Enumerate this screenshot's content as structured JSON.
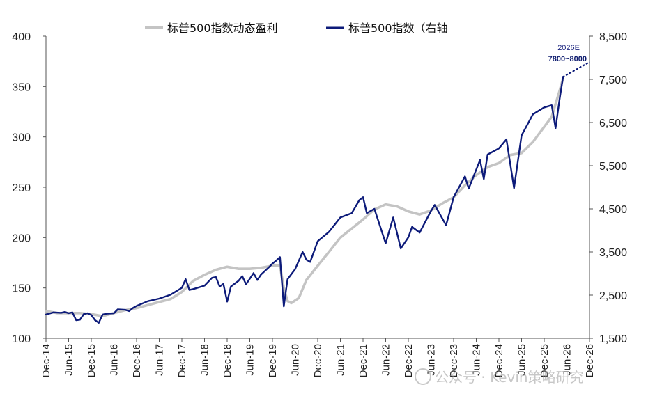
{
  "chart_data": {
    "type": "line",
    "legend": {
      "placement": "top-center",
      "items": [
        {
          "label": "标普500指数动态盈利",
          "color": "#c4c4c4"
        },
        {
          "label": "标普500指数（右轴",
          "color": "#0d1b7a"
        }
      ]
    },
    "y_left": {
      "ylim": [
        100,
        400
      ],
      "ticks": [
        "100",
        "150",
        "200",
        "250",
        "300",
        "350",
        "400"
      ]
    },
    "y_right": {
      "ylim": [
        1500,
        8500
      ],
      "ticks": [
        "1,500",
        "2,500",
        "3,500",
        "4,500",
        "5,500",
        "6,500",
        "7,500",
        "8,500"
      ]
    },
    "x_ticks": [
      "Dec-14",
      "Jun-15",
      "Dec-15",
      "Jun-16",
      "Dec-16",
      "Jun-17",
      "Dec-17",
      "Jun-18",
      "Dec-18",
      "Jun-19",
      "Dec-19",
      "Jun-20",
      "Dec-20",
      "Jun-21",
      "Dec-21",
      "Jun-22",
      "Dec-22",
      "Jun-23",
      "Dec-23",
      "Jun-24",
      "Dec-24",
      "Jun-25",
      "Dec-25",
      "Jun-26",
      "Dec-26"
    ],
    "series": [
      {
        "name": "标普500指数动态盈利",
        "axis": "left",
        "color": "#c4c4c4",
        "points": [
          [
            "Dec-14",
            127
          ],
          [
            "Mar-15",
            125
          ],
          [
            "Jun-15",
            125
          ],
          [
            "Sep-15",
            125
          ],
          [
            "Dec-15",
            124
          ],
          [
            "Mar-16",
            122
          ],
          [
            "Jun-16",
            125
          ],
          [
            "Sep-16",
            128
          ],
          [
            "Dec-16",
            130
          ],
          [
            "Mar-17",
            133
          ],
          [
            "Jun-17",
            136
          ],
          [
            "Sep-17",
            139
          ],
          [
            "Dec-17",
            146
          ],
          [
            "Mar-18",
            157
          ],
          [
            "Jun-18",
            163
          ],
          [
            "Sep-18",
            168
          ],
          [
            "Dec-18",
            171
          ],
          [
            "Mar-19",
            169
          ],
          [
            "Jun-19",
            169
          ],
          [
            "Sep-19",
            170
          ],
          [
            "Dec-19",
            172
          ],
          [
            "Feb-20",
            172
          ],
          [
            "Mar-20",
            150
          ],
          [
            "Apr-20",
            137
          ],
          [
            "May-20",
            135
          ],
          [
            "Jul-20",
            140
          ],
          [
            "Sep-20",
            158
          ],
          [
            "Dec-20",
            172
          ],
          [
            "Mar-21",
            186
          ],
          [
            "Jun-21",
            200
          ],
          [
            "Sep-21",
            209
          ],
          [
            "Dec-21",
            218
          ],
          [
            "Mar-22",
            228
          ],
          [
            "Jun-22",
            233
          ],
          [
            "Sep-22",
            231
          ],
          [
            "Dec-22",
            226
          ],
          [
            "Mar-23",
            223
          ],
          [
            "Jun-23",
            227
          ],
          [
            "Sep-23",
            234
          ],
          [
            "Dec-23",
            240
          ],
          [
            "Mar-24",
            252
          ],
          [
            "Jun-24",
            262
          ],
          [
            "Sep-24",
            270
          ],
          [
            "Dec-24",
            274
          ],
          [
            "Mar-25",
            282
          ],
          [
            "Jun-25",
            284
          ],
          [
            "Sep-25",
            295
          ],
          [
            "Dec-25",
            310
          ],
          [
            "Feb-26",
            320
          ],
          [
            "Apr-26",
            345
          ],
          [
            "May-26",
            358
          ]
        ]
      },
      {
        "name": "标普500指数（右轴）",
        "axis": "right",
        "color": "#0d1b7a",
        "points": [
          [
            "Dec-14",
            2050
          ],
          [
            "Feb-15",
            2100
          ],
          [
            "Apr-15",
            2090
          ],
          [
            "May-15",
            2110
          ],
          [
            "Jun-15",
            2080
          ],
          [
            "Jul-15",
            2100
          ],
          [
            "Aug-15",
            1920
          ],
          [
            "Sep-15",
            1930
          ],
          [
            "Oct-15",
            2060
          ],
          [
            "Nov-15",
            2080
          ],
          [
            "Dec-15",
            2040
          ],
          [
            "Jan-16",
            1920
          ],
          [
            "Feb-16",
            1860
          ],
          [
            "Mar-16",
            2050
          ],
          [
            "Apr-16",
            2070
          ],
          [
            "Jun-16",
            2080
          ],
          [
            "Jul-16",
            2170
          ],
          [
            "Sep-16",
            2160
          ],
          [
            "Oct-16",
            2130
          ],
          [
            "Nov-16",
            2200
          ],
          [
            "Dec-16",
            2250
          ],
          [
            "Mar-17",
            2360
          ],
          [
            "Jun-17",
            2420
          ],
          [
            "Sep-17",
            2510
          ],
          [
            "Dec-17",
            2670
          ],
          [
            "Jan-18",
            2870
          ],
          [
            "Feb-18",
            2620
          ],
          [
            "Mar-18",
            2640
          ],
          [
            "Jun-18",
            2720
          ],
          [
            "Aug-18",
            2900
          ],
          [
            "Sep-18",
            2920
          ],
          [
            "Oct-18",
            2700
          ],
          [
            "Nov-18",
            2760
          ],
          [
            "Dec-18",
            2350
          ],
          [
            "Jan-19",
            2700
          ],
          [
            "Mar-19",
            2830
          ],
          [
            "Apr-19",
            2940
          ],
          [
            "May-19",
            2750
          ],
          [
            "Jul-19",
            3010
          ],
          [
            "Aug-19",
            2850
          ],
          [
            "Sep-19",
            2980
          ],
          [
            "Nov-19",
            3140
          ],
          [
            "Dec-19",
            3230
          ],
          [
            "Jan-20",
            3300
          ],
          [
            "Feb-20",
            3380
          ],
          [
            "Mar-20",
            2240
          ],
          [
            "Apr-20",
            2870
          ],
          [
            "Jun-20",
            3100
          ],
          [
            "Aug-20",
            3500
          ],
          [
            "Sep-20",
            3320
          ],
          [
            "Oct-20",
            3270
          ],
          [
            "Dec-20",
            3750
          ],
          [
            "Mar-21",
            3970
          ],
          [
            "Jun-21",
            4300
          ],
          [
            "Sep-21",
            4400
          ],
          [
            "Nov-21",
            4700
          ],
          [
            "Dec-21",
            4770
          ],
          [
            "Jan-22",
            4400
          ],
          [
            "Mar-22",
            4500
          ],
          [
            "Jun-22",
            3700
          ],
          [
            "Aug-22",
            4300
          ],
          [
            "Oct-22",
            3580
          ],
          [
            "Dec-22",
            3840
          ],
          [
            "Jan-23",
            4080
          ],
          [
            "Mar-23",
            3950
          ],
          [
            "Jun-23",
            4450
          ],
          [
            "Jul-23",
            4590
          ],
          [
            "Oct-23",
            4120
          ],
          [
            "Dec-23",
            4770
          ],
          [
            "Mar-24",
            5250
          ],
          [
            "Apr-24",
            4970
          ],
          [
            "Jul-24",
            5630
          ],
          [
            "Aug-24",
            5190
          ],
          [
            "Sep-24",
            5760
          ],
          [
            "Dec-24",
            5900
          ],
          [
            "Feb-25",
            6110
          ],
          [
            "Apr-25",
            4980
          ],
          [
            "Jun-25",
            6200
          ],
          [
            "Sep-25",
            6690
          ],
          [
            "Dec-25",
            6850
          ],
          [
            "Feb-26",
            6900
          ],
          [
            "Mar-26",
            6370
          ],
          [
            "Apr-26",
            7000
          ],
          [
            "May-26",
            7560
          ]
        ]
      },
      {
        "name": "2026E",
        "axis": "right",
        "style": "dotted",
        "color": "#0d1b7a",
        "points": [
          [
            "May-26",
            7560
          ],
          [
            "Dec-26",
            7900
          ]
        ]
      }
    ],
    "annotations": [
      {
        "text": "2026E",
        "x": "Dec-26",
        "axis": "right"
      },
      {
        "text": "7800~8000",
        "x": "Dec-26",
        "axis": "right"
      }
    ],
    "grid": false
  },
  "watermark": {
    "text": "公众号 · Kevin策略研究"
  }
}
